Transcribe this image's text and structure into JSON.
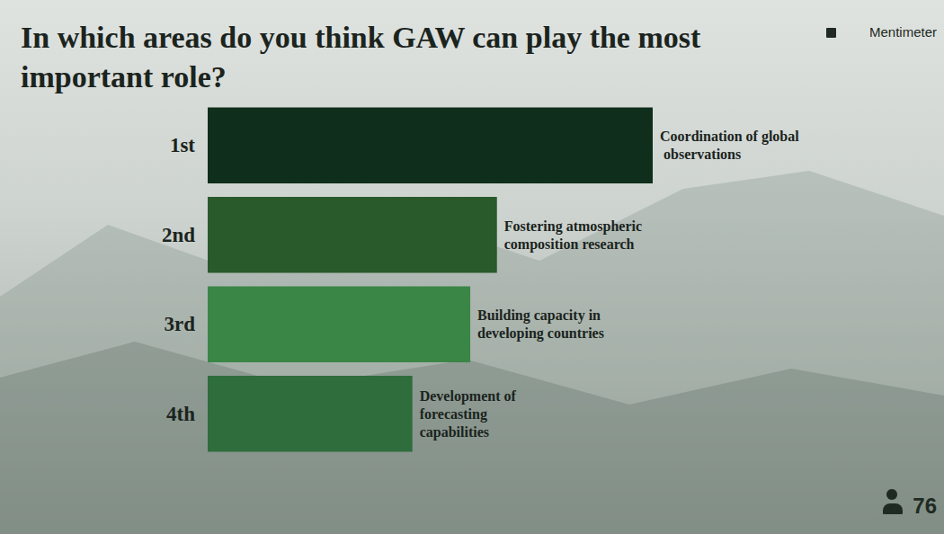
{
  "chart_data": {
    "type": "bar",
    "title": "In which areas do you think GAW can play the most important role?",
    "categories": [
      "1st",
      "2nd",
      "3rd",
      "4th"
    ],
    "bar_labels": [
      "Coordination of global observations",
      "Fostering atmospheric composition research",
      "Building capacity in developing countries",
      "Development of forecasting capabilities"
    ],
    "values": [
      100,
      65,
      59,
      46
    ],
    "colors": [
      "#0f2e1b",
      "#285a2c",
      "#3a8646",
      "#2f6d3d"
    ],
    "xlim": [
      0,
      100
    ],
    "orientation": "horizontal",
    "tick_labels": "y",
    "grid": false,
    "respondents": 76,
    "brand": "Mentimeter"
  }
}
